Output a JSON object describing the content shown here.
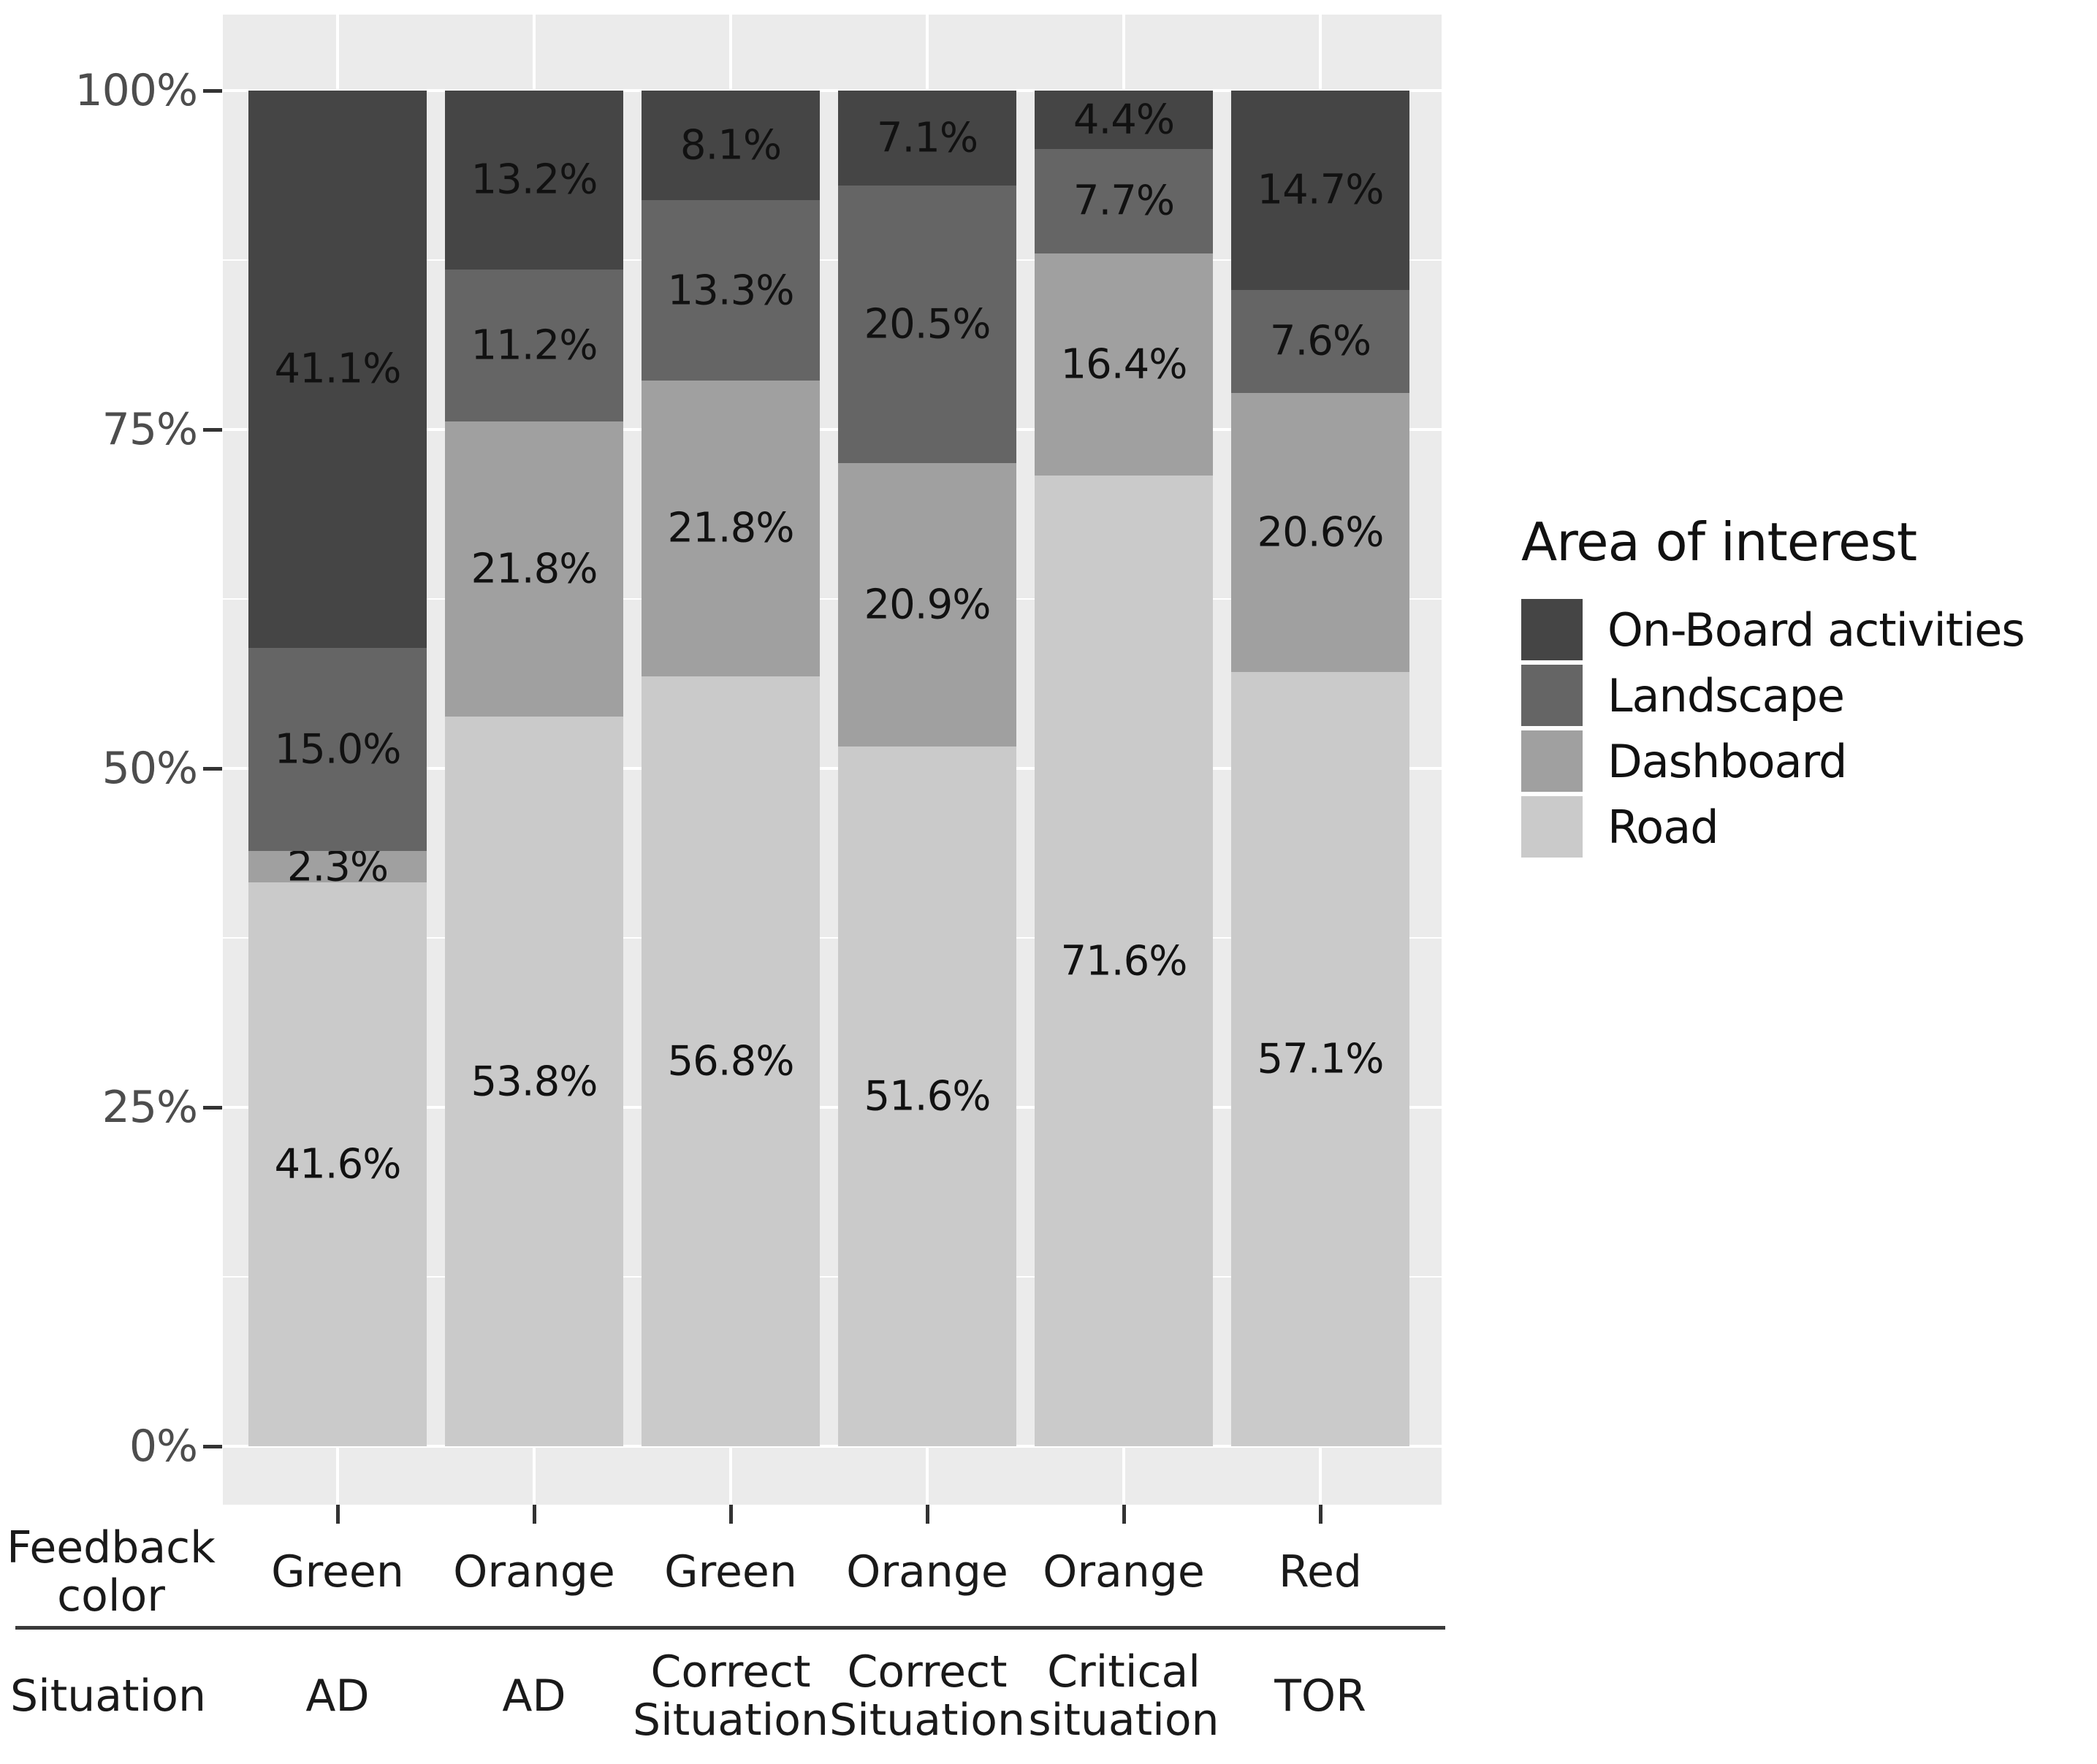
{
  "chart_data": {
    "type": "bar",
    "stacked": true,
    "percent_unit": "%",
    "legend_title": "Area of interest",
    "legend_position": "right",
    "grid": true,
    "ylim": [
      0,
      100
    ],
    "y_ticks": [
      {
        "label": "100%",
        "value": 100
      },
      {
        "label": "75%",
        "value": 75
      },
      {
        "label": "50%",
        "value": 50
      },
      {
        "label": "25%",
        "value": 25
      },
      {
        "label": "0%",
        "value": 0
      }
    ],
    "series_bottom_to_top": [
      "Road",
      "Dashboard",
      "Landscape",
      "On-Board activities"
    ],
    "legend_entries_top_to_bottom": [
      "On-Board activities",
      "Landscape",
      "Dashboard",
      "Road"
    ],
    "series_colors": {
      "On-Board activities": "#454545",
      "Landscape": "#656565",
      "Dashboard": "#a0a0a0",
      "Road": "#cacaca"
    },
    "x_row_headers": {
      "row1": "Feedback color",
      "row2": "Situation"
    },
    "bars": [
      {
        "feedback_color": "Green",
        "situation": "AD",
        "values": {
          "Road": 41.6,
          "Dashboard": 2.3,
          "Landscape": 15.0,
          "On-Board activities": 41.1
        }
      },
      {
        "feedback_color": "Orange",
        "situation": "AD",
        "values": {
          "Road": 53.8,
          "Dashboard": 21.8,
          "Landscape": 11.2,
          "On-Board activities": 13.2
        }
      },
      {
        "feedback_color": "Green",
        "situation": "Correct Situation",
        "values": {
          "Road": 56.8,
          "Dashboard": 21.8,
          "Landscape": 13.3,
          "On-Board activities": 8.1
        }
      },
      {
        "feedback_color": "Orange",
        "situation": "Correct Situation",
        "values": {
          "Road": 51.6,
          "Dashboard": 20.9,
          "Landscape": 20.5,
          "On-Board activities": 7.1
        }
      },
      {
        "feedback_color": "Orange",
        "situation": "Critical situation",
        "values": {
          "Road": 71.6,
          "Dashboard": 16.4,
          "Landscape": 7.7,
          "On-Board activities": 4.4
        }
      },
      {
        "feedback_color": "Red",
        "situation": "TOR",
        "values": {
          "Road": 57.1,
          "Dashboard": 20.6,
          "Landscape": 7.6,
          "On-Board activities": 14.7
        }
      }
    ]
  },
  "colors": {
    "panel_background": "#ebebeb",
    "gridline": "#ffffff",
    "axis_tick": "#333333",
    "y_axis_text": "#4d4d4d",
    "axis_label_text": "#1a1a1a",
    "bar_value_text": "#111111"
  }
}
